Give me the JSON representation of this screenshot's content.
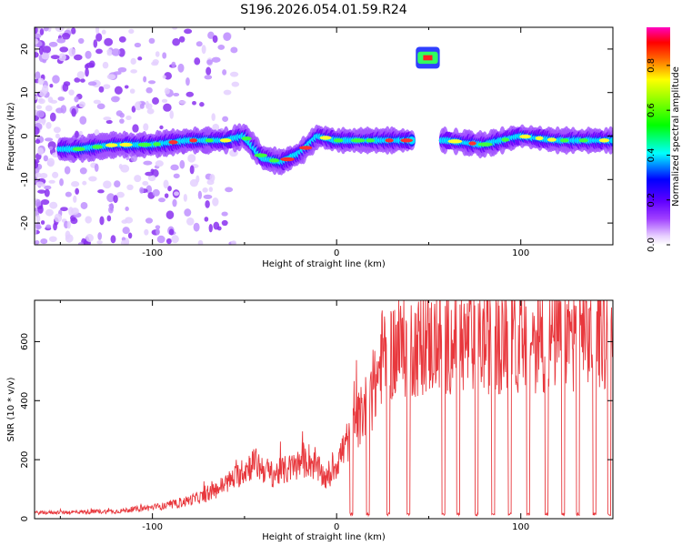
{
  "chart_data": [
    {
      "type": "heatmap",
      "title": "S196.2026.054.01.59.R24",
      "xlabel": "Height of straight line (km)",
      "ylabel": "Frequency (Hz)",
      "xlim": [
        -164,
        150
      ],
      "ylim": [
        -25,
        25
      ],
      "xticks": [
        -100,
        0,
        100
      ],
      "yticks": [
        -20,
        -10,
        0,
        10,
        20
      ],
      "colorbar": {
        "label": "Normalized spectral amplitude",
        "range": [
          0.0,
          0.97
        ],
        "ticks": [
          "0.0",
          "0.2",
          "0.4",
          "0.6",
          "0.8"
        ],
        "colors": [
          "#ffffff",
          "#c080ff",
          "#8000ff",
          "#2020ff",
          "#00ffff",
          "#00ff40",
          "#80ff00",
          "#ffff00",
          "#ff8000",
          "#ff0000",
          "#ff00a0"
        ]
      },
      "ridge": {
        "description": "strong narrow band near 0 Hz",
        "x": [
          -140,
          -120,
          -100,
          -80,
          -60,
          -50,
          -40,
          -30,
          -20,
          -10,
          0,
          20,
          40,
          60,
          80,
          100,
          120,
          150
        ],
        "y": [
          -3,
          -2,
          -2,
          -1,
          -1,
          0,
          -5,
          -6,
          -4,
          0,
          -1,
          -1,
          -1,
          -1,
          -2,
          0,
          -1,
          -1
        ]
      },
      "line_feature": {
        "x_start": 43,
        "x_end": 56,
        "y": 18
      }
    },
    {
      "type": "line",
      "xlabel": "Height of straight line (km)",
      "ylabel": "SNR (10 * v/v)",
      "xlim": [
        -164,
        150
      ],
      "ylim": [
        0,
        740
      ],
      "xticks": [
        -100,
        0,
        100
      ],
      "yticks": [
        0,
        200,
        400,
        600
      ],
      "color": "#e8383d",
      "envelope": {
        "x": [
          -164,
          -120,
          -90,
          -70,
          -55,
          -45,
          -35,
          -25,
          -15,
          -5,
          5,
          15,
          20,
          25,
          40,
          60,
          80,
          100,
          120,
          150
        ],
        "y": [
          20,
          25,
          45,
          80,
          140,
          190,
          150,
          170,
          200,
          130,
          250,
          370,
          420,
          560,
          580,
          600,
          600,
          600,
          610,
          620
        ]
      },
      "dropouts_x": [
        8,
        17,
        28,
        39,
        58,
        66,
        76,
        85,
        94,
        104,
        114,
        123,
        131,
        140,
        148
      ]
    }
  ]
}
